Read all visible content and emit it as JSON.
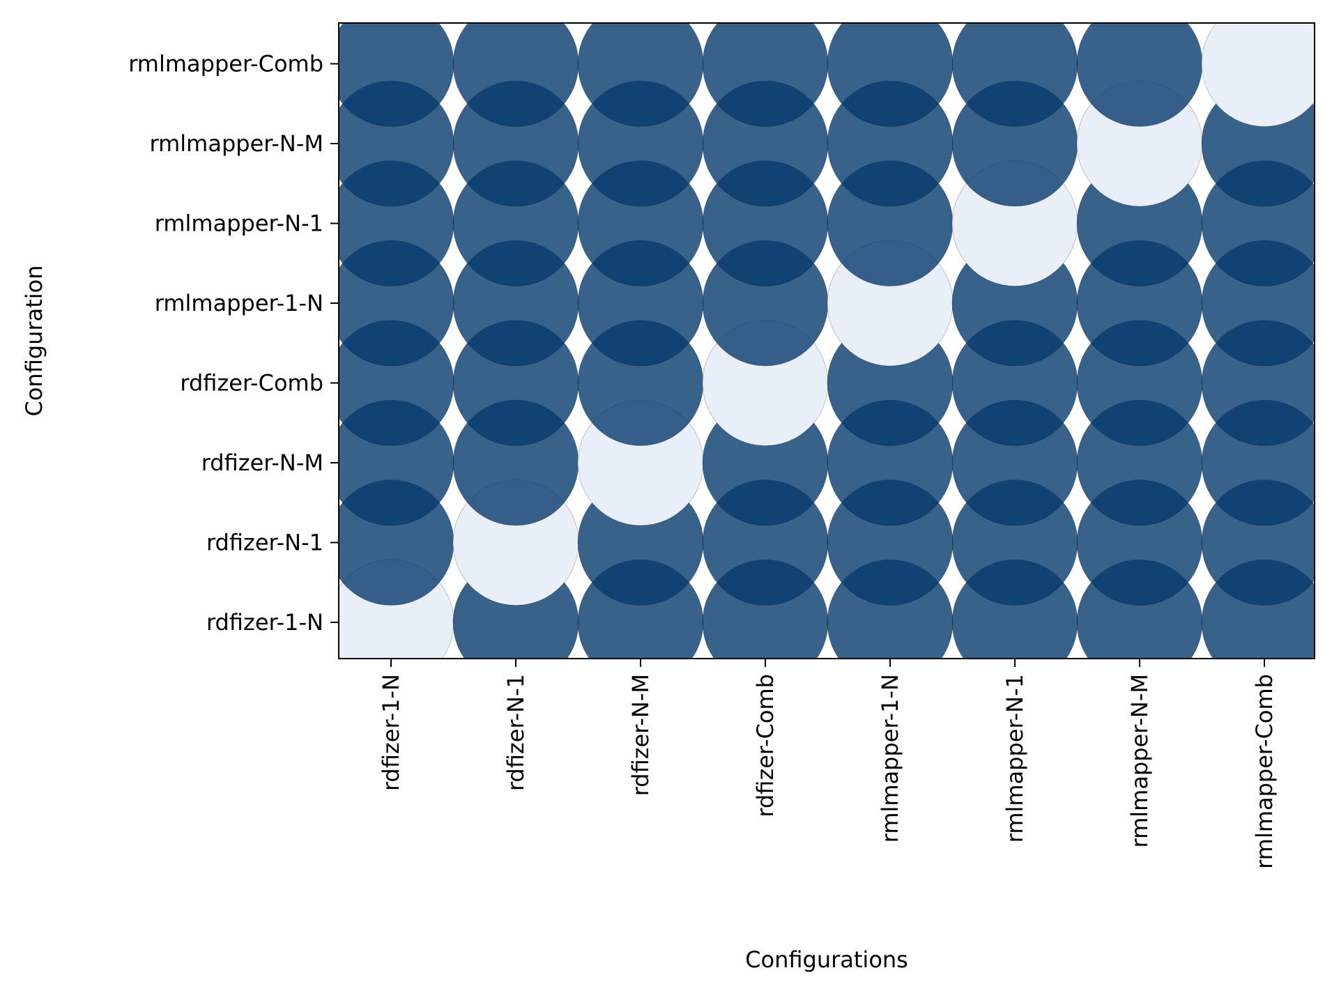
{
  "chart_data": {
    "type": "heatmap",
    "marker": "circle",
    "title": "",
    "xlabel": "Configurations",
    "ylabel": "Configuration",
    "x_categories": [
      "rdfizer-1-N",
      "rdfizer-N-1",
      "rdfizer-N-M",
      "rdfizer-Comb",
      "rmlmapper-1-N",
      "rmlmapper-N-1",
      "rmlmapper-N-M",
      "rmlmapper-Comb"
    ],
    "y_categories": [
      "rdfizer-1-N",
      "rdfizer-N-1",
      "rdfizer-N-M",
      "rdfizer-Comb",
      "rmlmapper-1-N",
      "rmlmapper-N-1",
      "rmlmapper-N-M",
      "rmlmapper-Comb"
    ],
    "matrix": [
      [
        0,
        1,
        1,
        1,
        1,
        1,
        1,
        1
      ],
      [
        1,
        0,
        1,
        1,
        1,
        1,
        1,
        1
      ],
      [
        1,
        1,
        0,
        1,
        1,
        1,
        1,
        1
      ],
      [
        1,
        1,
        1,
        0,
        1,
        1,
        1,
        1
      ],
      [
        1,
        1,
        1,
        1,
        0,
        1,
        1,
        1
      ],
      [
        1,
        1,
        1,
        1,
        1,
        0,
        1,
        1
      ],
      [
        1,
        1,
        1,
        1,
        1,
        1,
        0,
        1
      ],
      [
        1,
        1,
        1,
        1,
        1,
        1,
        1,
        0
      ]
    ],
    "colors": {
      "high": "#083b6e",
      "low": "#e8eff8"
    },
    "opacity": 0.8,
    "grid": false,
    "legend": "none"
  }
}
